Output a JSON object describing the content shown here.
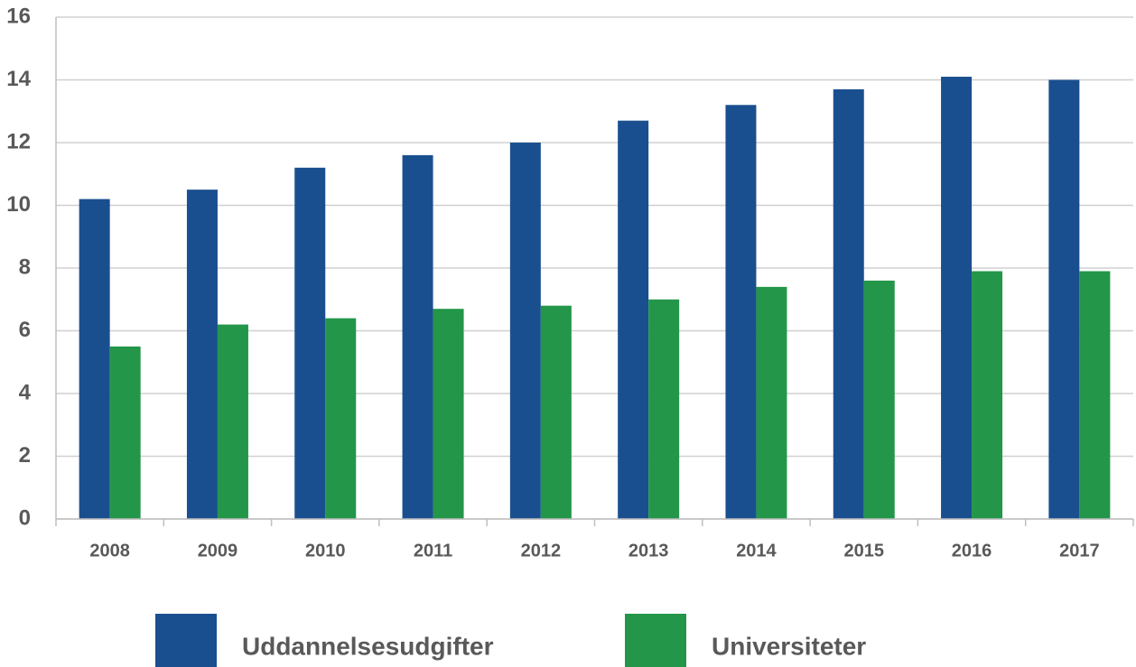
{
  "chart_data": {
    "type": "bar",
    "categories": [
      "2008",
      "2009",
      "2010",
      "2011",
      "2012",
      "2013",
      "2014",
      "2015",
      "2016",
      "2017"
    ],
    "series": [
      {
        "name": "Uddannelsesudgifter",
        "color": "#1a4f8f",
        "values": [
          10.2,
          10.5,
          11.2,
          11.6,
          12.0,
          12.7,
          13.2,
          13.7,
          14.1,
          14.0
        ]
      },
      {
        "name": "Universiteter",
        "color": "#23964a",
        "values": [
          5.5,
          6.2,
          6.4,
          6.7,
          6.8,
          7.0,
          7.4,
          7.6,
          7.9,
          7.9
        ]
      }
    ],
    "ylim": [
      0,
      16
    ],
    "yticks": [
      0,
      2,
      4,
      6,
      8,
      10,
      12,
      14,
      16
    ],
    "grid": true,
    "legend": "bottom"
  }
}
